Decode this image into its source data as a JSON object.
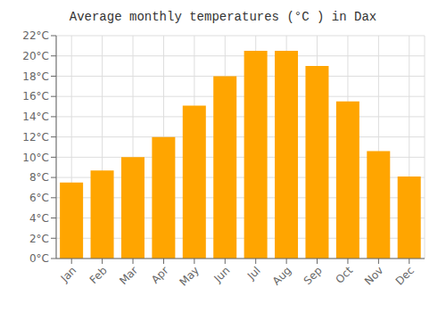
{
  "chart_data": {
    "type": "bar",
    "title": "Average monthly temperatures (°C ) in Dax",
    "categories": [
      "Jan",
      "Feb",
      "Mar",
      "Apr",
      "May",
      "Jun",
      "Jul",
      "Aug",
      "Sep",
      "Oct",
      "Nov",
      "Dec"
    ],
    "values": [
      7.5,
      8.7,
      10.0,
      12.0,
      15.1,
      18.0,
      20.5,
      20.5,
      19.0,
      15.5,
      10.6,
      8.1
    ],
    "color": "#FFA500",
    "ylim": [
      0,
      22
    ],
    "yticks": [
      {
        "value": 0,
        "label": "0°C"
      },
      {
        "value": 2,
        "label": "2°C"
      },
      {
        "value": 4,
        "label": "4°C"
      },
      {
        "value": 6,
        "label": "6°C"
      },
      {
        "value": 8,
        "label": "8°C"
      },
      {
        "value": 10,
        "label": "10°C"
      },
      {
        "value": 12,
        "label": "12°C"
      },
      {
        "value": 14,
        "label": "14°C"
      },
      {
        "value": 16,
        "label": "16°C"
      },
      {
        "value": 18,
        "label": "18°C"
      },
      {
        "value": 20,
        "label": "20°C"
      },
      {
        "value": 22,
        "label": "22°C"
      }
    ],
    "grid": true
  }
}
